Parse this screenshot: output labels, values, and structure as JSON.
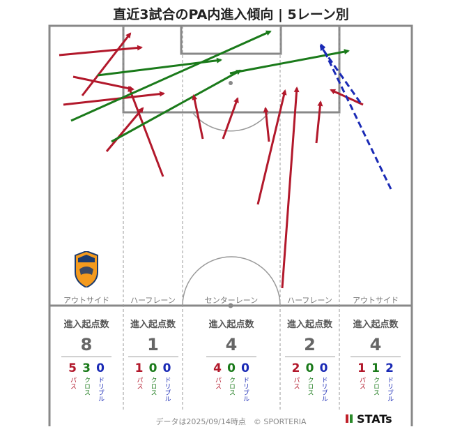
{
  "title": "直近3試合のPA内進入傾向 | 5レーン別",
  "colors": {
    "pass": "#b2182b",
    "cross": "#1a7a1a",
    "dribble": "#1a2ab5"
  },
  "lanes": [
    {
      "name": "アウトサイド",
      "header": "進入起点数",
      "total": "8",
      "pass": "5",
      "cross": "3",
      "dribble": "0"
    },
    {
      "name": "ハーフレーン",
      "header": "進入起点数",
      "total": "1",
      "pass": "1",
      "cross": "0",
      "dribble": "0"
    },
    {
      "name": "センターレーン",
      "header": "進入起点数",
      "total": "4",
      "pass": "4",
      "cross": "0",
      "dribble": "0"
    },
    {
      "name": "ハーフレーン",
      "header": "進入起点数",
      "total": "2",
      "pass": "2",
      "cross": "0",
      "dribble": "0"
    },
    {
      "name": "アウトサイド",
      "header": "進入起点数",
      "total": "4",
      "pass": "1",
      "cross": "1",
      "dribble": "2"
    }
  ],
  "labels": {
    "pass": "パス",
    "cross": "クロス",
    "dribble": "ドリブル"
  },
  "team_emblem": {
    "name": "S-PULSE",
    "icon": "shimizu-spulse-emblem"
  },
  "footer": "データは2025/09/14時点　© SPORTERIA",
  "brand": "STATs",
  "arrows": [
    {
      "type": "pass",
      "from": [
        85,
        79
      ],
      "to": [
        203,
        68
      ]
    },
    {
      "type": "pass",
      "from": [
        118,
        137
      ],
      "to": [
        187,
        48
      ]
    },
    {
      "type": "pass",
      "from": [
        105,
        110
      ],
      "to": [
        191,
        128
      ]
    },
    {
      "type": "pass",
      "from": [
        91,
        150
      ],
      "to": [
        235,
        134
      ]
    },
    {
      "type": "pass",
      "from": [
        234,
        253
      ],
      "to": [
        185,
        125
      ]
    },
    {
      "type": "pass",
      "from": [
        153,
        217
      ],
      "to": [
        205,
        155
      ]
    },
    {
      "type": "cross",
      "from": [
        102,
        173
      ],
      "to": [
        388,
        45
      ]
    },
    {
      "type": "cross",
      "from": [
        140,
        108
      ],
      "to": [
        317,
        86
      ]
    },
    {
      "type": "cross",
      "from": [
        160,
        203
      ],
      "to": [
        345,
        101
      ]
    },
    {
      "type": "cross",
      "from": [
        330,
        105
      ],
      "to": [
        500,
        73
      ]
    },
    {
      "type": "pass",
      "from": [
        291,
        199
      ],
      "to": [
        278,
        137
      ]
    },
    {
      "type": "pass",
      "from": [
        320,
        199
      ],
      "to": [
        341,
        141
      ]
    },
    {
      "type": "pass",
      "from": [
        386,
        203
      ],
      "to": [
        381,
        155
      ]
    },
    {
      "type": "pass",
      "from": [
        370,
        293
      ],
      "to": [
        409,
        130
      ]
    },
    {
      "type": "pass",
      "from": [
        405,
        413
      ],
      "to": [
        426,
        126
      ]
    },
    {
      "type": "pass",
      "from": [
        454,
        205
      ],
      "to": [
        460,
        146
      ]
    },
    {
      "type": "pass",
      "from": [
        521,
        150
      ],
      "to": [
        475,
        129
      ]
    },
    {
      "type": "dribble",
      "from": [
        561,
        271
      ],
      "to": [
        461,
        64
      ]
    },
    {
      "type": "dribble",
      "from": [
        517,
        147
      ],
      "to": [
        460,
        66
      ]
    }
  ]
}
